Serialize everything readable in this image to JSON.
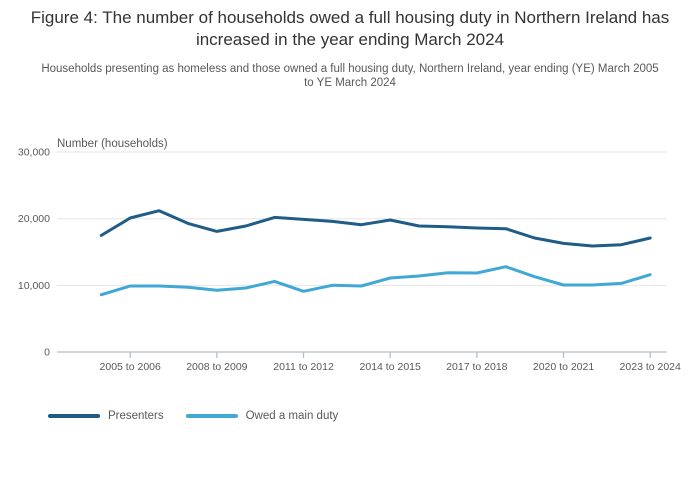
{
  "header": {
    "title": "Figure 4: The number of households owed a full housing duty in Northern Ireland has increased in the year ending March 2024",
    "subtitle": "Households presenting as homeless and those owned a full housing duty, Northern Ireland, year ending (YE) March 2005 to YE March 2024"
  },
  "chart_data": {
    "type": "line",
    "title": "Figure 4: The number of households owed a full housing duty in Northern Ireland has increased in the year ending March 2024",
    "ylabel": "Number (households)",
    "xlabel": "",
    "ylim": [
      0,
      30000
    ],
    "grid": "horizontal",
    "legend_position": "bottom-left",
    "y_ticks": [
      {
        "value": 0,
        "label": "0"
      },
      {
        "value": 10000,
        "label": "10,000"
      },
      {
        "value": 20000,
        "label": "20,000"
      },
      {
        "value": 30000,
        "label": "30,000"
      }
    ],
    "categories": [
      "2004 to 2005",
      "2005 to 2006",
      "2006 to 2007",
      "2007 to 2008",
      "2008 to 2009",
      "2009 to 2010",
      "2010 to 2011",
      "2011 to 2012",
      "2012 to 2013",
      "2013 to 2014",
      "2014 to 2015",
      "2015 to 2016",
      "2016 to 2017",
      "2017 to 2018",
      "2018 to 2019",
      "2019 to 2020",
      "2020 to 2021",
      "2021 to 2022",
      "2022 to 2023",
      "2023 to 2024"
    ],
    "x_tick_indices": [
      1,
      4,
      7,
      10,
      13,
      16,
      19
    ],
    "x_tick_labels": [
      "2005 to 2006",
      "2008 to 2009",
      "2011 to 2012",
      "2014 to 2015",
      "2017 to 2018",
      "2020 to 2021",
      "2023 to 2024"
    ],
    "series": [
      {
        "name": "Presenters",
        "color": "#1f5c87",
        "values": [
          17500,
          20100,
          21200,
          19300,
          18100,
          18900,
          20200,
          19900,
          19600,
          19100,
          19800,
          18900,
          18800,
          18600,
          18500,
          17100,
          16300,
          15900,
          16100,
          17100
        ]
      },
      {
        "name": "Owed a main duty",
        "color": "#41a7d4",
        "values": [
          8600,
          9900,
          9900,
          9700,
          9250,
          9600,
          10600,
          9100,
          10000,
          9900,
          11100,
          11400,
          11900,
          11850,
          12800,
          11300,
          10050,
          10050,
          10300,
          11600
        ]
      }
    ],
    "colors": {
      "grid_line": "#e6e6e6",
      "axis_line": "#b3bfc8",
      "tick_label": "#595959",
      "axis_title": "#595959"
    }
  }
}
